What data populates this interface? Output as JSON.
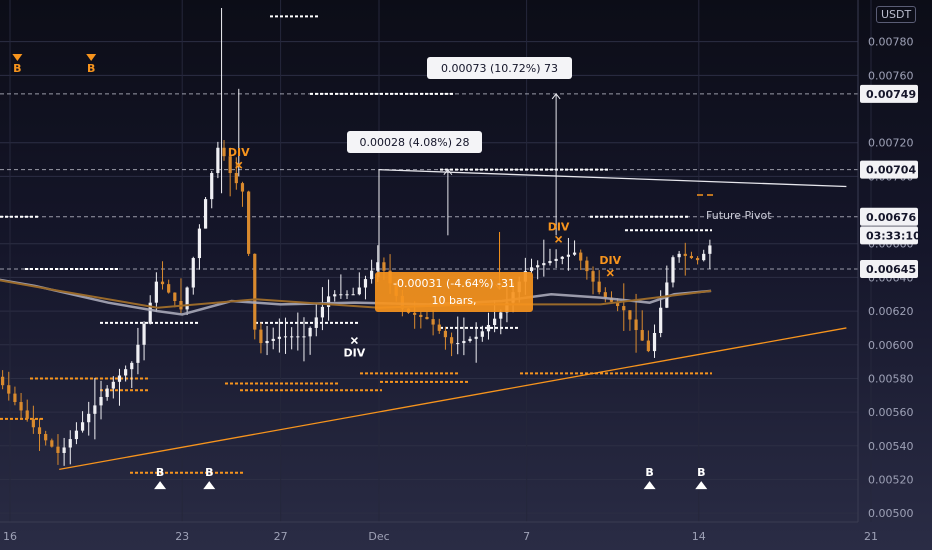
{
  "currency_badge": "USDT",
  "price_axis": {
    "ticks": [
      "0.00780",
      "0.00760",
      "0.00720",
      "0.00700",
      "0.00660",
      "0.00640",
      "0.00620",
      "0.00600",
      "0.00580",
      "0.00560",
      "0.00540",
      "0.00520",
      "0.00500"
    ],
    "levels": [
      {
        "label": "0.00749",
        "value": 0.00749
      },
      {
        "label": "0.00704",
        "value": 0.00704
      },
      {
        "label": "0.00676",
        "value": 0.00676
      },
      {
        "label": "03:33:10",
        "value": 0.00665
      },
      {
        "label": "0.00645",
        "value": 0.00645
      }
    ]
  },
  "time_axis": {
    "labels": [
      {
        "label": "16",
        "day": 16
      },
      {
        "label": "23",
        "day": 23
      },
      {
        "label": "27",
        "day": 27
      },
      {
        "label": "Dec",
        "day": 31
      },
      {
        "label": "7",
        "day": 37
      },
      {
        "label": "14",
        "day": 44
      },
      {
        "label": "21",
        "day": 51
      }
    ]
  },
  "measurements": [
    {
      "text": "0.00073 (10.72%) 73",
      "style": "light"
    },
    {
      "text": "0.00028 (4.08%) 28",
      "style": "light"
    },
    {
      "text": "-0.00031 (-4.64%) -31",
      "style": "orange"
    },
    {
      "text": "10 bars,",
      "style": "orange"
    }
  ],
  "labels": {
    "future_pivot": "Future Pivot",
    "div": "DIV",
    "buy": "B"
  },
  "chart_data": {
    "type": "line",
    "title": "",
    "xlabel": "",
    "ylabel": "",
    "ylim": [
      0.0049,
      0.008
    ],
    "x_unit": "day (Dec 1 = 31)",
    "series": [
      {
        "name": "",
        "x": [
          13,
          15,
          17,
          18,
          19,
          20,
          21,
          22,
          23,
          24,
          24.5,
          25,
          25.5,
          26,
          27,
          28,
          29,
          30,
          31,
          32,
          33,
          34,
          35,
          36,
          37,
          38,
          39,
          40,
          41,
          42,
          43,
          44,
          44.5
        ],
        "y": [
          0.006,
          0.0059,
          0.0055,
          0.00535,
          0.00555,
          0.00575,
          0.0059,
          0.0064,
          0.0062,
          0.0069,
          0.0072,
          0.007,
          0.0069,
          0.006,
          0.00605,
          0.00605,
          0.0063,
          0.0063,
          0.0065,
          0.0062,
          0.00615,
          0.006,
          0.00605,
          0.0062,
          0.00645,
          0.0065,
          0.00655,
          0.0063,
          0.0062,
          0.00595,
          0.00655,
          0.0065,
          0.0066
        ]
      },
      {
        "name": "",
        "x": [
          13,
          17,
          20,
          22,
          23,
          25,
          27,
          30,
          33,
          36,
          38,
          40,
          42,
          43,
          44.5
        ],
        "y": [
          0.00645,
          0.00635,
          0.00625,
          0.0062,
          0.00618,
          0.00626,
          0.00624,
          0.00625,
          0.00624,
          0.00626,
          0.0063,
          0.00628,
          0.00625,
          0.0063,
          0.00632
        ]
      }
    ],
    "trendlines": [
      {
        "x": [
          18,
          50
        ],
        "y": [
          0.00526,
          0.0061
        ],
        "color": "#f7941d"
      },
      {
        "x": [
          31,
          50
        ],
        "y": [
          0.00704,
          0.00694
        ],
        "color": "#e6e6ec"
      }
    ],
    "horizontal_levels": [
      0.00749,
      0.00704,
      0.00676,
      0.00645
    ],
    "signals": [
      {
        "text": "B",
        "x": 15.3,
        "y": 0.00762,
        "color": "#f7941d"
      },
      {
        "text": "B",
        "x": 16.3,
        "y": 0.00762,
        "color": "#f7941d"
      },
      {
        "text": "B",
        "x": 19.3,
        "y": 0.00762,
        "color": "#f7941d"
      },
      {
        "text": "B",
        "x": 22.1,
        "y": 0.00522,
        "color": "#ffffff"
      },
      {
        "text": "B",
        "x": 24.1,
        "y": 0.00522,
        "color": "#ffffff"
      },
      {
        "text": "B",
        "x": 42.0,
        "y": 0.00522,
        "color": "#ffffff"
      },
      {
        "text": "B",
        "x": 44.1,
        "y": 0.00522,
        "color": "#ffffff"
      },
      {
        "text": "DIV",
        "x": 25.3,
        "y": 0.00712,
        "color": "#f7941d"
      },
      {
        "text": "DIV",
        "x": 30.0,
        "y": 0.00593,
        "color": "#ffffff"
      },
      {
        "text": "DIV",
        "x": 38.3,
        "y": 0.00668,
        "color": "#f7941d"
      },
      {
        "text": "DIV",
        "x": 40.4,
        "y": 0.00648,
        "color": "#f7941d"
      }
    ]
  },
  "colors": {
    "accent": "#f7941d",
    "white": "#e6e6ec",
    "grid": "#3a3c52",
    "axis_text": "#9ea1b6"
  }
}
